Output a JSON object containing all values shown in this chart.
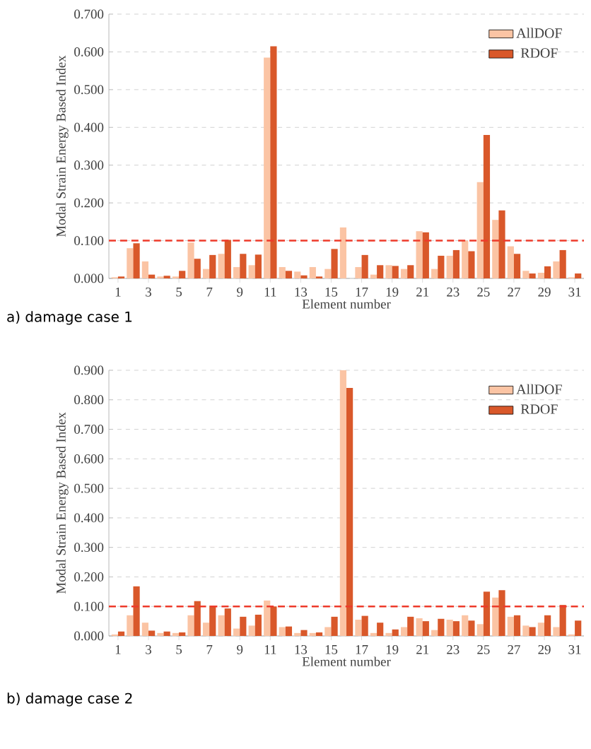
{
  "chart_data": [
    {
      "type": "bar",
      "xlabel": "Element number",
      "ylabel": "Modal Strain Energy Based Index",
      "annotations": [
        "a) damage case 1"
      ],
      "categories": [
        "1",
        null,
        "3",
        null,
        "5",
        null,
        "7",
        null,
        "9",
        null,
        "11",
        null,
        "13",
        null,
        "15",
        null,
        "17",
        null,
        "19",
        null,
        "21",
        null,
        "23",
        null,
        "25",
        null,
        "27",
        null,
        "29",
        null,
        "31"
      ],
      "series": [
        {
          "name": "AllDOF",
          "color": "#fbc4a4",
          "values": [
            0.003,
            0.08,
            0.045,
            0.005,
            0.005,
            0.095,
            0.025,
            0.065,
            0.03,
            0.035,
            0.585,
            0.03,
            0.018,
            0.03,
            0.025,
            0.135,
            0.03,
            0.01,
            0.035,
            0.025,
            0.125,
            0.025,
            0.06,
            0.1,
            0.255,
            0.155,
            0.085,
            0.02,
            0.015,
            0.045,
            0.003
          ]
        },
        {
          "name": "RDOF",
          "color": "#d9582a",
          "values": [
            0.005,
            0.093,
            0.01,
            0.007,
            0.02,
            0.052,
            0.062,
            0.102,
            0.065,
            0.063,
            0.615,
            0.02,
            0.008,
            0.005,
            0.078,
            0,
            0.062,
            0.035,
            0.033,
            0.035,
            0.122,
            0.06,
            0.075,
            0.072,
            0.38,
            0.18,
            0.065,
            0.013,
            0.032,
            0.075,
            0.013
          ]
        }
      ],
      "ylim": [
        0,
        0.7
      ],
      "yticks": [
        {
          "value": 0,
          "label": "0.000"
        },
        {
          "value": 0.1,
          "label": "0.100"
        },
        {
          "value": 0.2,
          "label": "0.200"
        },
        {
          "value": 0.3,
          "label": "0.300"
        },
        {
          "value": 0.4,
          "label": "0.400"
        },
        {
          "value": 0.5,
          "label": "0.500"
        },
        {
          "value": 0.6,
          "label": "0.600"
        },
        {
          "value": 0.7,
          "label": "0.700"
        }
      ],
      "ref_lines": [
        {
          "axis": "y",
          "value": 0.1,
          "color": "#ee3a2a",
          "line_style": "dashed"
        }
      ],
      "grid": "y",
      "legend": "top right"
    },
    {
      "type": "bar",
      "xlabel": "Element number",
      "ylabel": "Modal Strain Energy Based Index",
      "annotations": [
        "b) damage case 2"
      ],
      "categories": [
        "1",
        null,
        "3",
        null,
        "5",
        null,
        "7",
        null,
        "9",
        null,
        "11",
        null,
        "13",
        null,
        "15",
        null,
        "17",
        null,
        "19",
        null,
        "21",
        null,
        "23",
        null,
        "25",
        null,
        "27",
        null,
        "29",
        null,
        "31"
      ],
      "series": [
        {
          "name": "AllDOF",
          "color": "#fbc4a4",
          "values": [
            0.005,
            0.07,
            0.045,
            0.01,
            0.01,
            0.07,
            0.045,
            0.07,
            0.025,
            0.035,
            0.12,
            0.03,
            0.01,
            0.01,
            0.03,
            0.9,
            0.055,
            0.01,
            0.01,
            0.03,
            0.06,
            0.02,
            0.055,
            0.07,
            0.04,
            0.13,
            0.065,
            0.035,
            0.045,
            0.03,
            0.005
          ]
        },
        {
          "name": "RDOF",
          "color": "#d9582a",
          "values": [
            0.015,
            0.168,
            0.018,
            0.015,
            0.012,
            0.118,
            0.103,
            0.093,
            0.065,
            0.072,
            0.1,
            0.032,
            0.02,
            0.012,
            0.065,
            0.84,
            0.068,
            0.045,
            0.022,
            0.065,
            0.05,
            0.058,
            0.05,
            0.052,
            0.15,
            0.155,
            0.07,
            0.03,
            0.07,
            0.105,
            0.052
          ]
        }
      ],
      "ylim": [
        0,
        0.9
      ],
      "yticks": [
        {
          "value": 0,
          "label": "0.000"
        },
        {
          "value": 0.1,
          "label": "0.100"
        },
        {
          "value": 0.2,
          "label": "0.200"
        },
        {
          "value": 0.3,
          "label": "0.300"
        },
        {
          "value": 0.4,
          "label": "0.400"
        },
        {
          "value": 0.5,
          "label": "0.500"
        },
        {
          "value": 0.6,
          "label": "0.600"
        },
        {
          "value": 0.7,
          "label": "0.700"
        },
        {
          "value": 0.8,
          "label": "0.800"
        },
        {
          "value": 0.9,
          "label": "0.900"
        }
      ],
      "ref_lines": [
        {
          "axis": "y",
          "value": 0.1,
          "color": "#ee3a2a",
          "line_style": "dashed"
        }
      ],
      "grid": "y",
      "legend": "top right"
    }
  ]
}
